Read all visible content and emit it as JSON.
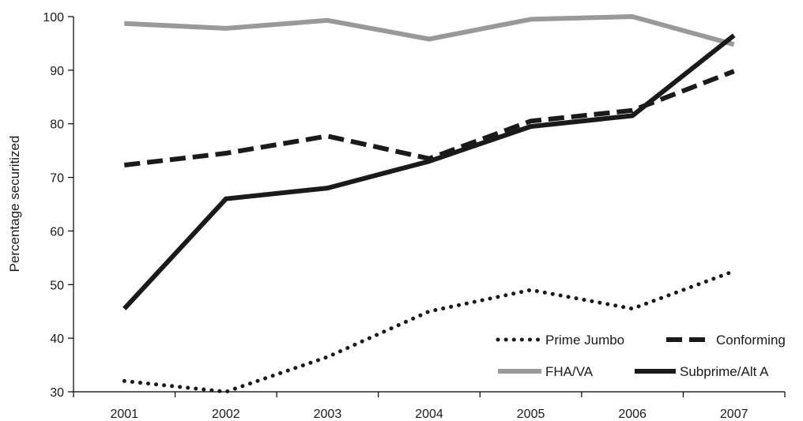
{
  "chart_data": {
    "type": "line",
    "title": "",
    "xlabel": "",
    "ylabel": "Percentage securitized",
    "categories": [
      "2001",
      "2002",
      "2003",
      "2004",
      "2005",
      "2006",
      "2007"
    ],
    "ylim": [
      30,
      100
    ],
    "yticks": [
      30,
      40,
      50,
      60,
      70,
      80,
      90,
      100
    ],
    "grid": false,
    "legend_position": "bottom-right",
    "series": [
      {
        "name": "Prime Jumbo",
        "style": "dotted",
        "color": "#1a1a1a",
        "values": [
          32,
          30,
          36.5,
          45,
          49,
          45.5,
          52.5
        ]
      },
      {
        "name": "Conforming",
        "style": "dashed",
        "color": "#1a1a1a",
        "values": [
          72.3,
          74.5,
          77.7,
          73.5,
          80.5,
          82.5,
          89.8
        ]
      },
      {
        "name": "FHA/VA",
        "style": "solid-gray",
        "color": "#999999",
        "values": [
          98.7,
          97.8,
          99.3,
          95.8,
          99.5,
          100,
          94.8
        ]
      },
      {
        "name": "Subprime/Alt A",
        "style": "solid",
        "color": "#1a1a1a",
        "values": [
          45.5,
          66,
          68,
          73,
          79.5,
          81.5,
          96.5
        ]
      }
    ]
  }
}
